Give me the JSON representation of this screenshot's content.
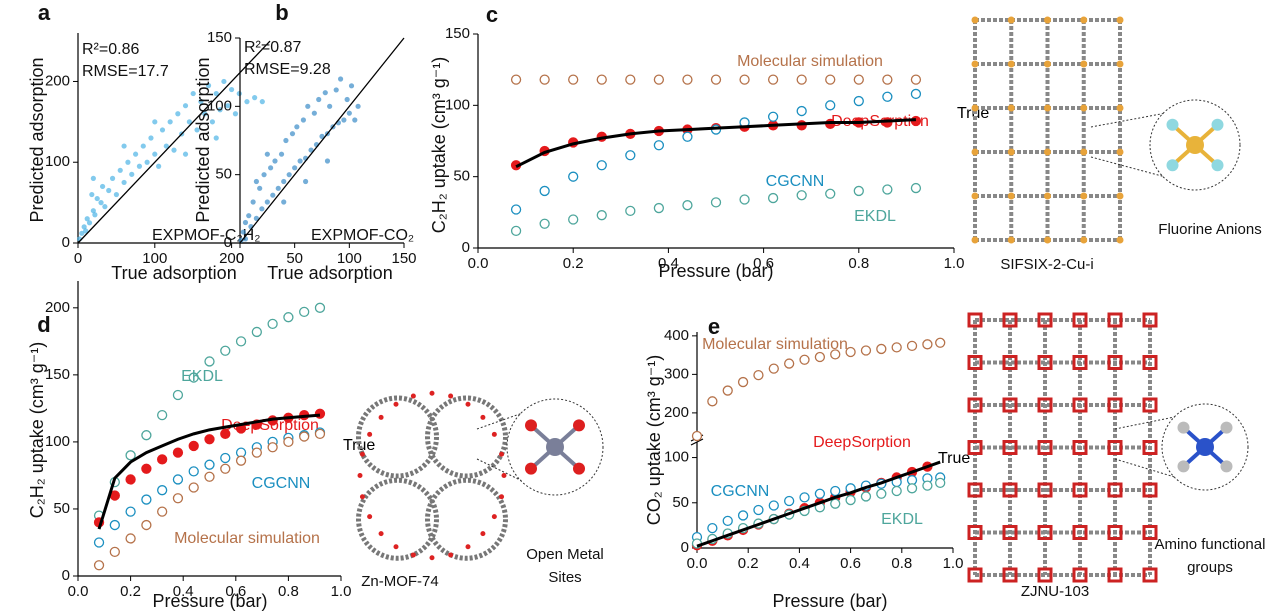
{
  "chart_data": [
    {
      "type": "scatter",
      "panel": "a",
      "xlabel": "True adsorption",
      "ylabel": "Predicted adsorption",
      "annotations": [
        "R²=0.86",
        "RMSE=17.7",
        "EXPMOF-C₂H₂"
      ],
      "color": "#4db4e6",
      "xlim": [
        0,
        250
      ],
      "ylim": [
        0,
        260
      ],
      "xticks": [
        0,
        100,
        200
      ],
      "yticks": [
        0,
        100,
        200
      ],
      "x": [
        2,
        5,
        8,
        10,
        12,
        15,
        18,
        20,
        22,
        25,
        30,
        32,
        35,
        40,
        45,
        50,
        55,
        60,
        65,
        70,
        75,
        80,
        85,
        90,
        95,
        100,
        105,
        110,
        115,
        120,
        125,
        130,
        135,
        140,
        145,
        150,
        155,
        160,
        165,
        170,
        175,
        180,
        185,
        190,
        195,
        200,
        205,
        210,
        220,
        230,
        240,
        20,
        60,
        100,
        140,
        180
      ],
      "values": [
        5,
        12,
        20,
        15,
        30,
        25,
        60,
        40,
        35,
        55,
        50,
        70,
        45,
        65,
        80,
        60,
        90,
        75,
        100,
        85,
        110,
        95,
        120,
        100,
        130,
        110,
        95,
        140,
        120,
        150,
        115,
        160,
        135,
        170,
        150,
        185,
        140,
        175,
        160,
        195,
        150,
        185,
        165,
        200,
        170,
        190,
        160,
        185,
        175,
        180,
        175,
        80,
        120,
        150,
        110,
        130
      ]
    },
    {
      "type": "scatter",
      "panel": "b",
      "xlabel": "True adsorption",
      "ylabel": "Predicted adsorption",
      "annotations": [
        "R²=0.87",
        "RMSE=9.28",
        "EXPMOF-CO₂"
      ],
      "color": "#3a8cc7",
      "xlim": [
        0,
        150
      ],
      "ylim": [
        0,
        150
      ],
      "xticks": [
        0,
        50,
        100,
        150
      ],
      "yticks": [
        0,
        50,
        100,
        150
      ],
      "x": [
        1,
        3,
        5,
        5,
        8,
        10,
        12,
        15,
        18,
        20,
        22,
        25,
        28,
        30,
        32,
        35,
        38,
        40,
        42,
        45,
        48,
        50,
        52,
        55,
        58,
        60,
        62,
        65,
        68,
        70,
        72,
        75,
        78,
        80,
        82,
        85,
        88,
        90,
        92,
        95,
        98,
        100,
        102,
        105,
        108,
        15,
        25,
        40,
        60,
        80
      ],
      "values": [
        2,
        8,
        15,
        3,
        20,
        12,
        30,
        18,
        40,
        25,
        50,
        30,
        55,
        35,
        60,
        40,
        65,
        45,
        75,
        50,
        80,
        55,
        85,
        60,
        90,
        62,
        100,
        68,
        95,
        72,
        105,
        78,
        110,
        80,
        100,
        85,
        112,
        88,
        120,
        90,
        105,
        95,
        115,
        90,
        100,
        45,
        65,
        30,
        45,
        60
      ]
    },
    {
      "type": "line",
      "panel": "c",
      "xlabel": "Pressure (bar)",
      "ylabel": "C₂H₂ uptake (cm³ g⁻¹)",
      "structure": "SIFSIX-2-Cu-i",
      "structure_detail": [
        "Fluorine Anions"
      ],
      "xlim": [
        0,
        1
      ],
      "ylim": [
        0,
        150
      ],
      "xticks": [
        {
          "value": 0,
          "label": "0.0"
        },
        0.2,
        0.4,
        0.6,
        0.8,
        {
          "value": 1,
          "label": "1.0"
        }
      ],
      "yticks": [
        0,
        50,
        100,
        150
      ],
      "x": [
        0.08,
        0.14,
        0.2,
        0.26,
        0.32,
        0.38,
        0.44,
        0.5,
        0.56,
        0.62,
        0.68,
        0.74,
        0.8,
        0.86,
        0.92
      ],
      "series": [
        {
          "name": "Molecular simulation",
          "color": "#b5724a",
          "style": "hollow",
          "values": [
            118,
            118,
            118,
            118,
            118,
            118,
            118,
            118,
            118,
            118,
            118,
            118,
            118,
            118,
            118
          ]
        },
        {
          "name": "DeepSorption",
          "color": "#e41a1c",
          "style": "filled",
          "values": [
            58,
            68,
            74,
            78,
            80,
            82,
            83,
            84,
            85,
            86,
            86,
            87,
            88,
            88,
            89
          ]
        },
        {
          "name": "CGCNN",
          "color": "#1b8fc0",
          "style": "hollow",
          "values": [
            27,
            40,
            50,
            58,
            65,
            72,
            78,
            83,
            88,
            92,
            96,
            100,
            103,
            106,
            108
          ]
        },
        {
          "name": "EKDL",
          "color": "#4ea69c",
          "style": "hollow",
          "values": [
            12,
            17,
            20,
            23,
            26,
            28,
            30,
            32,
            34,
            35,
            37,
            38,
            40,
            41,
            42
          ]
        },
        {
          "name": "True",
          "color": "#000000",
          "style": "line",
          "values": [
            57,
            67,
            73,
            77,
            80,
            82,
            83,
            84,
            85,
            86,
            87,
            88,
            88,
            89,
            90
          ]
        }
      ]
    },
    {
      "type": "line",
      "panel": "d",
      "xlabel": "Pressure (bar)",
      "ylabel": "C₂H₂ uptake (cm³ g⁻¹)",
      "structure": "Zn-MOF-74",
      "structure_detail": [
        "Open Metal",
        "Sites"
      ],
      "xlim": [
        0,
        1
      ],
      "ylim": [
        0,
        220
      ],
      "xticks": [
        {
          "value": 0,
          "label": "0.0"
        },
        0.2,
        0.4,
        0.6,
        0.8,
        {
          "value": 1,
          "label": "1.0"
        }
      ],
      "yticks": [
        0,
        50,
        100,
        150,
        200
      ],
      "x": [
        0.08,
        0.14,
        0.2,
        0.26,
        0.32,
        0.38,
        0.44,
        0.5,
        0.56,
        0.62,
        0.68,
        0.74,
        0.8,
        0.86,
        0.92
      ],
      "series": [
        {
          "name": "EKDL",
          "color": "#4ea69c",
          "style": "hollow",
          "values": [
            45,
            70,
            90,
            105,
            120,
            135,
            148,
            160,
            168,
            175,
            182,
            188,
            193,
            197,
            200
          ]
        },
        {
          "name": "DeepSorption",
          "color": "#e41a1c",
          "style": "filled",
          "values": [
            40,
            60,
            72,
            80,
            87,
            92,
            97,
            102,
            106,
            110,
            113,
            116,
            118,
            120,
            121
          ]
        },
        {
          "name": "CGCNN",
          "color": "#1b8fc0",
          "style": "hollow",
          "values": [
            25,
            38,
            48,
            57,
            64,
            72,
            78,
            83,
            88,
            92,
            96,
            100,
            103,
            105,
            107
          ]
        },
        {
          "name": "Molecular simulation",
          "color": "#b5724a",
          "style": "hollow",
          "values": [
            8,
            18,
            28,
            38,
            48,
            58,
            66,
            74,
            80,
            86,
            92,
            96,
            100,
            104,
            106
          ]
        },
        {
          "name": "True",
          "color": "#000000",
          "style": "line",
          "values": [
            35,
            73,
            85,
            92,
            97,
            102,
            106,
            109,
            111,
            113,
            115,
            117,
            118,
            119,
            120
          ]
        }
      ]
    },
    {
      "type": "line",
      "panel": "e",
      "xlabel": "Pressure (bar)",
      "ylabel": "CO₂ uptake (cm³ g⁻¹)",
      "structure": "ZJNU-103",
      "structure_detail": [
        "Amino functional",
        "groups"
      ],
      "xlim": [
        0,
        1
      ],
      "ylim": [
        0,
        410
      ],
      "ybreak": [
        115,
        140
      ],
      "xticks": [
        {
          "value": 0,
          "label": "0.0"
        },
        0.2,
        0.4,
        0.6,
        0.8,
        {
          "value": 1,
          "label": "1.0"
        }
      ],
      "yticks": [
        0,
        50,
        100,
        200,
        300,
        400
      ],
      "x": [
        0.0,
        0.06,
        0.12,
        0.18,
        0.24,
        0.3,
        0.36,
        0.42,
        0.48,
        0.54,
        0.6,
        0.66,
        0.72,
        0.78,
        0.84,
        0.9,
        0.95
      ],
      "series": [
        {
          "name": "Molecular simulation",
          "color": "#b5724a",
          "style": "hollow",
          "values": [
            140,
            230,
            258,
            280,
            298,
            315,
            328,
            338,
            345,
            352,
            358,
            362,
            366,
            370,
            374,
            378,
            382
          ]
        },
        {
          "name": "DeepSorption",
          "color": "#e41a1c",
          "style": "filled",
          "values": [
            3,
            8,
            14,
            20,
            26,
            32,
            38,
            44,
            50,
            56,
            62,
            67,
            72,
            78,
            84,
            90,
            null
          ]
        },
        {
          "name": "CGCNN",
          "color": "#1b8fc0",
          "style": "hollow",
          "values": [
            12,
            22,
            30,
            36,
            42,
            47,
            52,
            56,
            60,
            63,
            66,
            69,
            71,
            73,
            75,
            77,
            78
          ]
        },
        {
          "name": "EKDL",
          "color": "#4ea69c",
          "style": "hollow",
          "values": [
            5,
            10,
            16,
            22,
            27,
            32,
            37,
            41,
            45,
            49,
            53,
            57,
            60,
            63,
            66,
            69,
            72
          ]
        },
        {
          "name": "True",
          "color": "#000000",
          "style": "line",
          "values": [
            2,
            8,
            14,
            20,
            26,
            32,
            38,
            44,
            50,
            56,
            61,
            67,
            72,
            78,
            84,
            90,
            95
          ]
        }
      ]
    }
  ]
}
